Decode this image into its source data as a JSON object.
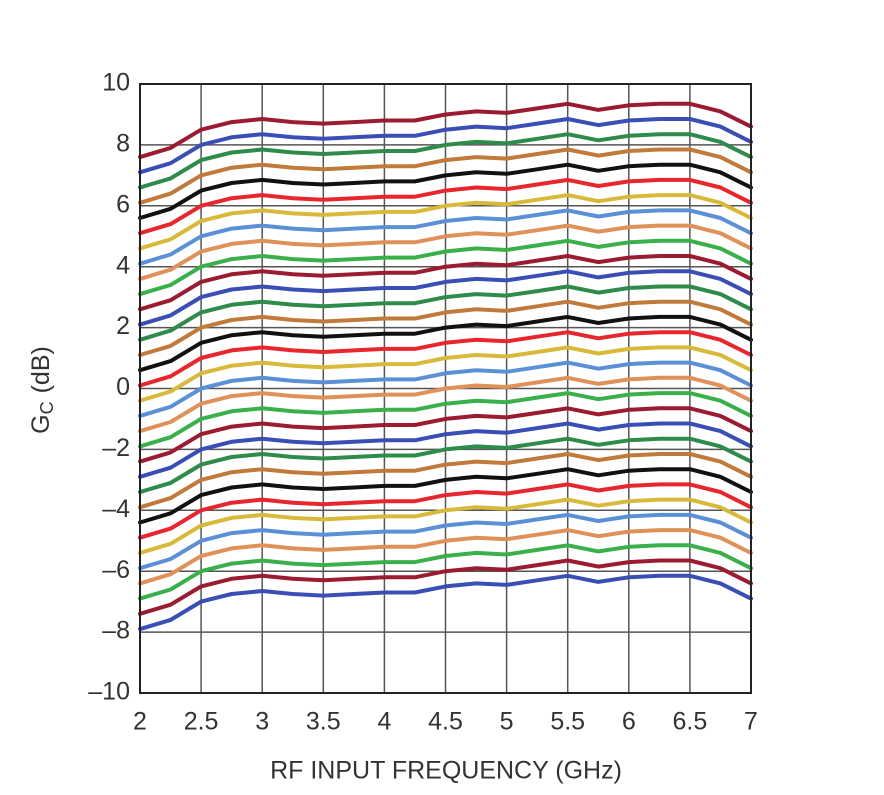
{
  "chart_data": {
    "type": "line",
    "x_label": "RF INPUT FREQUENCY (GHz)",
    "y_label": "G",
    "y_label_sub": "C",
    "y_label_unit": "(dB)",
    "xlim": [
      2,
      7
    ],
    "ylim": [
      -10,
      10
    ],
    "xticks": [
      2,
      2.5,
      3,
      3.5,
      4,
      4.5,
      5,
      5.5,
      6,
      6.5,
      7
    ],
    "yticks": [
      {
        "value": -10,
        "label": "–10"
      },
      {
        "value": -8,
        "label": "–8"
      },
      {
        "value": -6,
        "label": "–6"
      },
      {
        "value": -4,
        "label": "–4"
      },
      {
        "value": -2,
        "label": "–2"
      },
      0,
      2,
      4,
      6,
      8,
      10
    ],
    "grid": true,
    "x": [
      2,
      2.25,
      2.5,
      2.75,
      3,
      3.25,
      3.5,
      3.75,
      4,
      4.25,
      4.5,
      4.75,
      5,
      5.25,
      5.5,
      5.75,
      6,
      6.25,
      6.5,
      6.75,
      7
    ],
    "series": [
      {
        "color": "#9b1b30",
        "values": [
          7.6,
          7.9,
          8.5,
          8.75,
          8.85,
          8.75,
          8.7,
          8.75,
          8.8,
          8.8,
          9,
          9.1,
          9.05,
          9.2,
          9.35,
          9.15,
          9.3,
          9.35,
          9.35,
          9.1,
          8.6
        ]
      },
      {
        "color": "#3a4fb5",
        "values": [
          7.1,
          7.4,
          8,
          8.25,
          8.35,
          8.25,
          8.2,
          8.25,
          8.3,
          8.3,
          8.5,
          8.6,
          8.55,
          8.7,
          8.85,
          8.65,
          8.8,
          8.85,
          8.85,
          8.6,
          8.1
        ]
      },
      {
        "color": "#2e8b4a",
        "values": [
          6.6,
          6.9,
          7.5,
          7.75,
          7.85,
          7.75,
          7.7,
          7.75,
          7.8,
          7.8,
          8,
          8.1,
          8.05,
          8.2,
          8.35,
          8.15,
          8.3,
          8.35,
          8.35,
          8.1,
          7.6
        ]
      },
      {
        "color": "#c07a3a",
        "values": [
          6.1,
          6.4,
          7,
          7.25,
          7.35,
          7.25,
          7.2,
          7.25,
          7.3,
          7.3,
          7.5,
          7.6,
          7.55,
          7.7,
          7.85,
          7.65,
          7.8,
          7.85,
          7.85,
          7.6,
          7.1
        ]
      },
      {
        "color": "#111111",
        "values": [
          5.6,
          5.9,
          6.5,
          6.75,
          6.85,
          6.75,
          6.7,
          6.75,
          6.8,
          6.8,
          7,
          7.1,
          7.05,
          7.2,
          7.35,
          7.15,
          7.3,
          7.35,
          7.35,
          7.1,
          6.6
        ]
      },
      {
        "color": "#e8262e",
        "values": [
          5.1,
          5.4,
          6,
          6.25,
          6.35,
          6.25,
          6.2,
          6.25,
          6.3,
          6.3,
          6.5,
          6.6,
          6.55,
          6.7,
          6.85,
          6.65,
          6.8,
          6.85,
          6.85,
          6.6,
          6.1
        ]
      },
      {
        "color": "#d9b93a",
        "values": [
          4.6,
          4.9,
          5.5,
          5.75,
          5.85,
          5.75,
          5.7,
          5.75,
          5.8,
          5.8,
          6,
          6.1,
          6.05,
          6.2,
          6.35,
          6.15,
          6.3,
          6.35,
          6.35,
          6.1,
          5.6
        ]
      },
      {
        "color": "#5b8fd6",
        "values": [
          4.1,
          4.4,
          5,
          5.25,
          5.35,
          5.25,
          5.2,
          5.25,
          5.3,
          5.3,
          5.5,
          5.6,
          5.55,
          5.7,
          5.85,
          5.65,
          5.8,
          5.85,
          5.85,
          5.6,
          5.1
        ]
      },
      {
        "color": "#e0915a",
        "values": [
          3.6,
          3.9,
          4.5,
          4.75,
          4.85,
          4.75,
          4.7,
          4.75,
          4.8,
          4.8,
          5,
          5.1,
          5.05,
          5.2,
          5.35,
          5.15,
          5.3,
          5.35,
          5.35,
          5.1,
          4.6
        ]
      },
      {
        "color": "#3ab04a",
        "values": [
          3.1,
          3.4,
          4,
          4.25,
          4.35,
          4.25,
          4.2,
          4.25,
          4.3,
          4.3,
          4.5,
          4.6,
          4.55,
          4.7,
          4.85,
          4.65,
          4.8,
          4.85,
          4.85,
          4.6,
          4.1
        ]
      },
      {
        "color": "#9b1b30",
        "values": [
          2.6,
          2.9,
          3.5,
          3.75,
          3.85,
          3.75,
          3.7,
          3.75,
          3.8,
          3.8,
          4,
          4.1,
          4.05,
          4.2,
          4.35,
          4.15,
          4.3,
          4.35,
          4.35,
          4.1,
          3.6
        ]
      },
      {
        "color": "#3a4fb5",
        "values": [
          2.1,
          2.4,
          3,
          3.25,
          3.35,
          3.25,
          3.2,
          3.25,
          3.3,
          3.3,
          3.5,
          3.6,
          3.55,
          3.7,
          3.85,
          3.65,
          3.8,
          3.85,
          3.85,
          3.6,
          3.1
        ]
      },
      {
        "color": "#2e8b4a",
        "values": [
          1.6,
          1.9,
          2.5,
          2.75,
          2.85,
          2.75,
          2.7,
          2.75,
          2.8,
          2.8,
          3,
          3.1,
          3.05,
          3.2,
          3.35,
          3.15,
          3.3,
          3.35,
          3.35,
          3.1,
          2.6
        ]
      },
      {
        "color": "#c07a3a",
        "values": [
          1.1,
          1.4,
          2,
          2.25,
          2.35,
          2.25,
          2.2,
          2.25,
          2.3,
          2.3,
          2.5,
          2.6,
          2.55,
          2.7,
          2.85,
          2.65,
          2.8,
          2.85,
          2.85,
          2.6,
          2.1
        ]
      },
      {
        "color": "#111111",
        "values": [
          0.6,
          0.9,
          1.5,
          1.75,
          1.85,
          1.75,
          1.7,
          1.75,
          1.8,
          1.8,
          2,
          2.1,
          2.05,
          2.2,
          2.35,
          2.15,
          2.3,
          2.35,
          2.35,
          2.1,
          1.6
        ]
      },
      {
        "color": "#e8262e",
        "values": [
          0.1,
          0.4,
          1,
          1.25,
          1.35,
          1.25,
          1.2,
          1.25,
          1.3,
          1.3,
          1.5,
          1.6,
          1.55,
          1.7,
          1.85,
          1.65,
          1.8,
          1.85,
          1.85,
          1.6,
          1.1
        ]
      },
      {
        "color": "#d9b93a",
        "values": [
          -0.4,
          -0.1,
          0.5,
          0.75,
          0.85,
          0.75,
          0.7,
          0.75,
          0.8,
          0.8,
          1,
          1.1,
          1.05,
          1.2,
          1.35,
          1.15,
          1.3,
          1.35,
          1.35,
          1.1,
          0.6
        ]
      },
      {
        "color": "#5b8fd6",
        "values": [
          -0.9,
          -0.6,
          0,
          0.25,
          0.35,
          0.25,
          0.2,
          0.25,
          0.3,
          0.3,
          0.5,
          0.6,
          0.55,
          0.7,
          0.85,
          0.65,
          0.8,
          0.85,
          0.85,
          0.6,
          0.1
        ]
      },
      {
        "color": "#e0915a",
        "values": [
          -1.4,
          -1.1,
          -0.5,
          -0.25,
          -0.15,
          -0.25,
          -0.3,
          -0.25,
          -0.2,
          -0.2,
          0,
          0.1,
          0.05,
          0.2,
          0.35,
          0.15,
          0.3,
          0.35,
          0.35,
          0.1,
          -0.4
        ]
      },
      {
        "color": "#3ab04a",
        "values": [
          -1.9,
          -1.6,
          -1,
          -0.75,
          -0.65,
          -0.75,
          -0.8,
          -0.75,
          -0.7,
          -0.7,
          -0.5,
          -0.4,
          -0.45,
          -0.3,
          -0.15,
          -0.35,
          -0.2,
          -0.15,
          -0.15,
          -0.4,
          -0.9
        ]
      },
      {
        "color": "#9b1b30",
        "values": [
          -2.4,
          -2.1,
          -1.5,
          -1.25,
          -1.15,
          -1.25,
          -1.3,
          -1.25,
          -1.2,
          -1.2,
          -1,
          -0.9,
          -0.95,
          -0.8,
          -0.65,
          -0.85,
          -0.7,
          -0.65,
          -0.65,
          -0.9,
          -1.4
        ]
      },
      {
        "color": "#3a4fb5",
        "values": [
          -2.9,
          -2.6,
          -2,
          -1.75,
          -1.65,
          -1.75,
          -1.8,
          -1.75,
          -1.7,
          -1.7,
          -1.5,
          -1.4,
          -1.45,
          -1.3,
          -1.15,
          -1.35,
          -1.2,
          -1.15,
          -1.15,
          -1.4,
          -1.9
        ]
      },
      {
        "color": "#2e8b4a",
        "values": [
          -3.4,
          -3.1,
          -2.5,
          -2.25,
          -2.15,
          -2.25,
          -2.3,
          -2.25,
          -2.2,
          -2.2,
          -2,
          -1.9,
          -1.95,
          -1.8,
          -1.65,
          -1.85,
          -1.7,
          -1.65,
          -1.65,
          -1.9,
          -2.4
        ]
      },
      {
        "color": "#c07a3a",
        "values": [
          -3.9,
          -3.6,
          -3,
          -2.75,
          -2.65,
          -2.75,
          -2.8,
          -2.75,
          -2.7,
          -2.7,
          -2.5,
          -2.4,
          -2.45,
          -2.3,
          -2.15,
          -2.35,
          -2.2,
          -2.15,
          -2.15,
          -2.4,
          -2.9
        ]
      },
      {
        "color": "#111111",
        "values": [
          -4.4,
          -4.1,
          -3.5,
          -3.25,
          -3.15,
          -3.25,
          -3.3,
          -3.25,
          -3.2,
          -3.2,
          -3,
          -2.9,
          -2.95,
          -2.8,
          -2.65,
          -2.85,
          -2.7,
          -2.65,
          -2.65,
          -2.9,
          -3.4
        ]
      },
      {
        "color": "#e8262e",
        "values": [
          -4.9,
          -4.6,
          -4,
          -3.75,
          -3.65,
          -3.75,
          -3.8,
          -3.75,
          -3.7,
          -3.7,
          -3.5,
          -3.4,
          -3.45,
          -3.3,
          -3.15,
          -3.35,
          -3.2,
          -3.15,
          -3.15,
          -3.4,
          -3.9
        ]
      },
      {
        "color": "#d9b93a",
        "values": [
          -5.4,
          -5.1,
          -4.5,
          -4.25,
          -4.15,
          -4.25,
          -4.3,
          -4.25,
          -4.2,
          -4.2,
          -4,
          -3.9,
          -3.95,
          -3.8,
          -3.65,
          -3.85,
          -3.7,
          -3.65,
          -3.65,
          -3.9,
          -4.4
        ]
      },
      {
        "color": "#5b8fd6",
        "values": [
          -5.9,
          -5.6,
          -5,
          -4.75,
          -4.65,
          -4.75,
          -4.8,
          -4.75,
          -4.7,
          -4.7,
          -4.5,
          -4.4,
          -4.45,
          -4.3,
          -4.15,
          -4.35,
          -4.2,
          -4.15,
          -4.15,
          -4.4,
          -4.9
        ]
      },
      {
        "color": "#e0915a",
        "values": [
          -6.4,
          -6.1,
          -5.5,
          -5.25,
          -5.15,
          -5.25,
          -5.3,
          -5.25,
          -5.2,
          -5.2,
          -5,
          -4.9,
          -4.95,
          -4.8,
          -4.65,
          -4.85,
          -4.7,
          -4.65,
          -4.65,
          -4.9,
          -5.4
        ]
      },
      {
        "color": "#3ab04a",
        "values": [
          -6.9,
          -6.6,
          -6,
          -5.75,
          -5.65,
          -5.75,
          -5.8,
          -5.75,
          -5.7,
          -5.7,
          -5.5,
          -5.4,
          -5.45,
          -5.3,
          -5.15,
          -5.35,
          -5.2,
          -5.15,
          -5.15,
          -5.4,
          -5.9
        ]
      },
      {
        "color": "#9b1b30",
        "values": [
          -7.4,
          -7.1,
          -6.5,
          -6.25,
          -6.15,
          -6.25,
          -6.3,
          -6.25,
          -6.2,
          -6.2,
          -6,
          -5.9,
          -5.95,
          -5.8,
          -5.65,
          -5.85,
          -5.7,
          -5.65,
          -5.65,
          -5.9,
          -6.4
        ]
      },
      {
        "color": "#3a4fb5",
        "values": [
          -7.9,
          -7.6,
          -7,
          -6.75,
          -6.65,
          -6.75,
          -6.8,
          -6.75,
          -6.7,
          -6.7,
          -6.5,
          -6.4,
          -6.45,
          -6.3,
          -6.15,
          -6.35,
          -6.2,
          -6.15,
          -6.15,
          -6.4,
          -6.9
        ]
      }
    ]
  }
}
